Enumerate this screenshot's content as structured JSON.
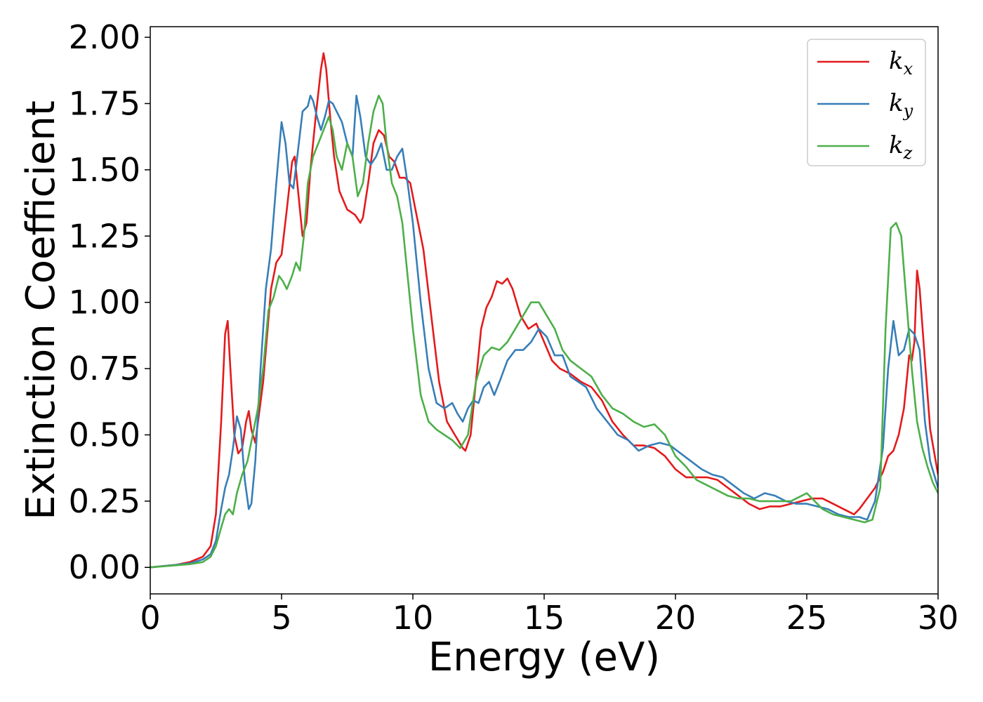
{
  "chart_data": {
    "type": "line",
    "title": "",
    "xlabel": "Energy (eV)",
    "ylabel": "Extinction Coefficient",
    "xlim": [
      0,
      30
    ],
    "ylim": [
      -0.1,
      2.04
    ],
    "x_ticks": [
      0,
      5,
      10,
      15,
      20,
      25,
      30
    ],
    "x_tick_labels": [
      "0",
      "5",
      "10",
      "15",
      "20",
      "25",
      "30"
    ],
    "y_ticks": [
      0,
      0.25,
      0.5,
      0.75,
      1.0,
      1.25,
      1.5,
      1.75,
      2.0
    ],
    "y_tick_labels": [
      "0.00",
      "0.25",
      "0.50",
      "0.75",
      "1.00",
      "1.25",
      "1.50",
      "1.75",
      "2.00"
    ],
    "grid": false,
    "legend_position": "top-right",
    "series": [
      {
        "name": "k",
        "subscript": "x",
        "color": "#e41a1c",
        "x": [
          0,
          1,
          1.5,
          2,
          2.3,
          2.5,
          2.7,
          2.85,
          2.95,
          3.05,
          3.2,
          3.35,
          3.5,
          3.65,
          3.75,
          3.85,
          4.0,
          4.3,
          4.6,
          4.8,
          5.0,
          5.2,
          5.4,
          5.5,
          5.6,
          5.8,
          5.95,
          6.1,
          6.3,
          6.5,
          6.6,
          6.7,
          6.85,
          7.0,
          7.2,
          7.5,
          7.8,
          8.0,
          8.1,
          8.3,
          8.5,
          8.7,
          8.9,
          9.1,
          9.3,
          9.5,
          9.7,
          9.9,
          10.1,
          10.4,
          10.7,
          11.0,
          11.3,
          11.6,
          11.9,
          12.0,
          12.2,
          12.4,
          12.6,
          12.8,
          13.0,
          13.2,
          13.4,
          13.6,
          13.8,
          14.1,
          14.4,
          14.7,
          15.0,
          15.3,
          15.6,
          16.0,
          16.4,
          16.8,
          17.2,
          17.6,
          18.0,
          18.4,
          18.8,
          19.2,
          19.6,
          20.0,
          20.4,
          20.8,
          21.2,
          21.6,
          22.0,
          22.4,
          22.8,
          23.2,
          23.6,
          24.0,
          24.4,
          24.8,
          25.2,
          25.6,
          26.0,
          26.4,
          26.8,
          27.0,
          27.3,
          27.6,
          27.9,
          28.1,
          28.3,
          28.5,
          28.7,
          28.9,
          29.0,
          29.1,
          29.2,
          29.3,
          29.5,
          29.7,
          30.0
        ],
        "y": [
          0.0,
          0.01,
          0.02,
          0.04,
          0.08,
          0.2,
          0.55,
          0.88,
          0.93,
          0.75,
          0.5,
          0.43,
          0.45,
          0.55,
          0.59,
          0.52,
          0.47,
          0.7,
          1.05,
          1.15,
          1.18,
          1.35,
          1.53,
          1.55,
          1.45,
          1.25,
          1.3,
          1.5,
          1.7,
          1.88,
          1.94,
          1.88,
          1.7,
          1.55,
          1.42,
          1.35,
          1.33,
          1.3,
          1.32,
          1.45,
          1.6,
          1.65,
          1.63,
          1.55,
          1.53,
          1.47,
          1.47,
          1.45,
          1.35,
          1.2,
          0.95,
          0.7,
          0.55,
          0.5,
          0.45,
          0.44,
          0.5,
          0.7,
          0.9,
          0.98,
          1.02,
          1.08,
          1.07,
          1.09,
          1.05,
          0.95,
          0.9,
          0.92,
          0.85,
          0.78,
          0.75,
          0.73,
          0.7,
          0.68,
          0.63,
          0.55,
          0.5,
          0.46,
          0.46,
          0.45,
          0.42,
          0.37,
          0.34,
          0.34,
          0.34,
          0.33,
          0.3,
          0.27,
          0.24,
          0.22,
          0.23,
          0.23,
          0.24,
          0.25,
          0.26,
          0.26,
          0.24,
          0.22,
          0.2,
          0.22,
          0.26,
          0.3,
          0.36,
          0.42,
          0.44,
          0.5,
          0.6,
          0.8,
          0.78,
          0.85,
          1.12,
          1.05,
          0.78,
          0.52,
          0.35
        ]
      },
      {
        "name": "k",
        "subscript": "y",
        "color": "#377eb8",
        "x": [
          0,
          1,
          1.5,
          2,
          2.3,
          2.5,
          2.7,
          2.85,
          3.0,
          3.15,
          3.3,
          3.45,
          3.6,
          3.75,
          3.85,
          4.0,
          4.2,
          4.4,
          4.6,
          4.8,
          5.0,
          5.15,
          5.3,
          5.45,
          5.6,
          5.8,
          6.0,
          6.1,
          6.2,
          6.35,
          6.5,
          6.65,
          6.8,
          6.95,
          7.1,
          7.3,
          7.5,
          7.7,
          7.85,
          8.0,
          8.2,
          8.4,
          8.6,
          8.8,
          9.0,
          9.2,
          9.4,
          9.6,
          9.8,
          10.0,
          10.3,
          10.6,
          10.9,
          11.2,
          11.5,
          11.7,
          11.9,
          12.1,
          12.3,
          12.5,
          12.7,
          12.9,
          13.1,
          13.3,
          13.6,
          13.9,
          14.2,
          14.5,
          14.8,
          15.1,
          15.4,
          15.7,
          16.0,
          16.3,
          16.6,
          17.0,
          17.4,
          17.8,
          18.2,
          18.6,
          19.0,
          19.4,
          19.8,
          20.2,
          20.6,
          21.0,
          21.4,
          21.8,
          22.2,
          22.6,
          23.0,
          23.4,
          23.8,
          24.2,
          24.6,
          25.0,
          25.4,
          25.8,
          26.2,
          26.6,
          27.0,
          27.3,
          27.6,
          27.9,
          28.1,
          28.3,
          28.5,
          28.7,
          28.9,
          29.1,
          29.3,
          29.5,
          29.7,
          30.0
        ],
        "y": [
          0.0,
          0.01,
          0.015,
          0.03,
          0.05,
          0.1,
          0.22,
          0.3,
          0.35,
          0.45,
          0.57,
          0.52,
          0.33,
          0.22,
          0.24,
          0.4,
          0.75,
          1.05,
          1.2,
          1.45,
          1.68,
          1.6,
          1.45,
          1.43,
          1.55,
          1.72,
          1.74,
          1.78,
          1.76,
          1.7,
          1.65,
          1.7,
          1.76,
          1.75,
          1.72,
          1.68,
          1.6,
          1.55,
          1.78,
          1.7,
          1.55,
          1.52,
          1.55,
          1.6,
          1.5,
          1.5,
          1.55,
          1.58,
          1.45,
          1.3,
          1.0,
          0.75,
          0.62,
          0.6,
          0.62,
          0.58,
          0.55,
          0.6,
          0.63,
          0.62,
          0.68,
          0.7,
          0.65,
          0.7,
          0.78,
          0.82,
          0.82,
          0.85,
          0.9,
          0.87,
          0.8,
          0.8,
          0.72,
          0.7,
          0.68,
          0.6,
          0.55,
          0.5,
          0.48,
          0.44,
          0.46,
          0.47,
          0.46,
          0.43,
          0.4,
          0.37,
          0.35,
          0.34,
          0.31,
          0.28,
          0.26,
          0.28,
          0.27,
          0.25,
          0.24,
          0.24,
          0.23,
          0.22,
          0.2,
          0.19,
          0.19,
          0.18,
          0.25,
          0.45,
          0.75,
          0.93,
          0.8,
          0.82,
          0.9,
          0.88,
          0.82,
          0.55,
          0.4,
          0.3
        ]
      },
      {
        "name": "k",
        "subscript": "z",
        "color": "#4daf4a",
        "x": [
          0,
          1,
          1.5,
          2,
          2.3,
          2.5,
          2.7,
          2.85,
          3.0,
          3.15,
          3.3,
          3.5,
          3.7,
          3.9,
          4.1,
          4.3,
          4.5,
          4.7,
          4.9,
          5.05,
          5.2,
          5.4,
          5.55,
          5.7,
          5.85,
          6.0,
          6.2,
          6.4,
          6.6,
          6.8,
          6.95,
          7.1,
          7.3,
          7.5,
          7.7,
          7.9,
          8.1,
          8.3,
          8.5,
          8.7,
          8.85,
          9.0,
          9.2,
          9.4,
          9.6,
          9.8,
          10.0,
          10.3,
          10.6,
          10.9,
          11.2,
          11.5,
          11.8,
          12.1,
          12.4,
          12.7,
          13.0,
          13.3,
          13.6,
          13.9,
          14.2,
          14.5,
          14.8,
          15.1,
          15.4,
          15.7,
          16.0,
          16.4,
          16.8,
          17.2,
          17.6,
          18.0,
          18.4,
          18.8,
          19.2,
          19.6,
          20.0,
          20.4,
          20.8,
          21.2,
          21.6,
          22.0,
          22.4,
          22.8,
          23.2,
          23.6,
          24.0,
          24.4,
          24.8,
          25.0,
          25.2,
          25.6,
          26.0,
          26.4,
          26.8,
          27.2,
          27.5,
          27.8,
          28.0,
          28.2,
          28.4,
          28.6,
          28.8,
          29.0,
          29.2,
          29.4,
          29.6,
          29.8,
          30.0
        ],
        "y": [
          0.0,
          0.008,
          0.012,
          0.02,
          0.04,
          0.08,
          0.15,
          0.2,
          0.22,
          0.2,
          0.28,
          0.35,
          0.4,
          0.5,
          0.6,
          0.75,
          0.97,
          1.02,
          1.1,
          1.08,
          1.05,
          1.1,
          1.15,
          1.12,
          1.25,
          1.45,
          1.55,
          1.6,
          1.65,
          1.7,
          1.65,
          1.55,
          1.5,
          1.6,
          1.55,
          1.4,
          1.45,
          1.6,
          1.72,
          1.78,
          1.75,
          1.6,
          1.45,
          1.4,
          1.3,
          1.1,
          0.9,
          0.65,
          0.55,
          0.52,
          0.5,
          0.48,
          0.45,
          0.5,
          0.7,
          0.8,
          0.83,
          0.82,
          0.85,
          0.9,
          0.95,
          1.0,
          1.0,
          0.95,
          0.9,
          0.82,
          0.78,
          0.75,
          0.72,
          0.65,
          0.6,
          0.58,
          0.55,
          0.53,
          0.54,
          0.5,
          0.42,
          0.38,
          0.33,
          0.31,
          0.29,
          0.27,
          0.26,
          0.26,
          0.25,
          0.25,
          0.25,
          0.25,
          0.27,
          0.28,
          0.26,
          0.22,
          0.2,
          0.19,
          0.18,
          0.17,
          0.18,
          0.3,
          0.9,
          1.28,
          1.3,
          1.25,
          1.0,
          0.75,
          0.55,
          0.45,
          0.38,
          0.32,
          0.28
        ]
      }
    ]
  }
}
